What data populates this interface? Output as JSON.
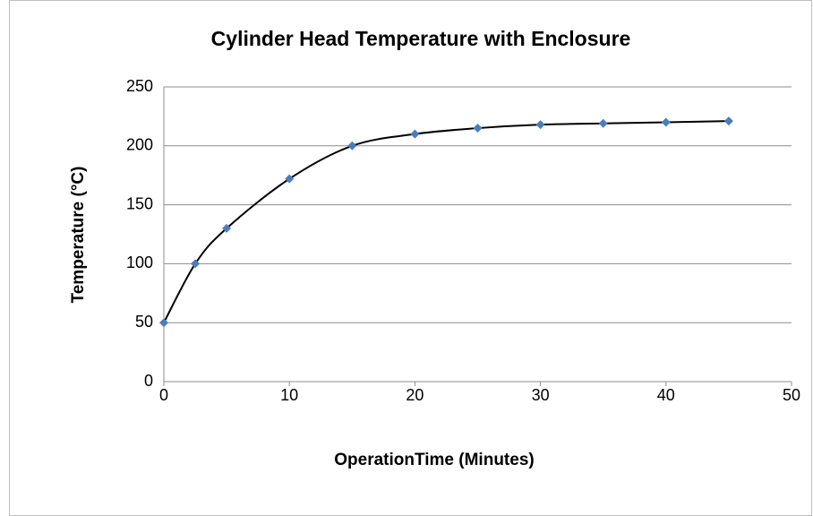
{
  "chart_data": {
    "type": "scatter",
    "title": "Cylinder Head Temperature with Enclosure",
    "x_label": "OperationTime (Minutes)",
    "y_label": "Temperature (°C)",
    "series": [
      {
        "color": "#4a7ebb",
        "line_color": "#000000",
        "x": [
          0,
          2.5,
          5,
          10,
          15,
          20,
          25,
          30,
          35,
          40,
          45
        ],
        "values": [
          50,
          100,
          130,
          172,
          200,
          210,
          215,
          218,
          219,
          220,
          221
        ]
      }
    ],
    "xlim": [
      0,
      50
    ],
    "xticks": [
      0,
      10,
      20,
      30,
      40,
      50
    ],
    "ylim": [
      0,
      250
    ],
    "yticks": [
      0,
      50,
      100,
      150,
      200,
      250
    ],
    "grid": true,
    "smooth": true
  }
}
